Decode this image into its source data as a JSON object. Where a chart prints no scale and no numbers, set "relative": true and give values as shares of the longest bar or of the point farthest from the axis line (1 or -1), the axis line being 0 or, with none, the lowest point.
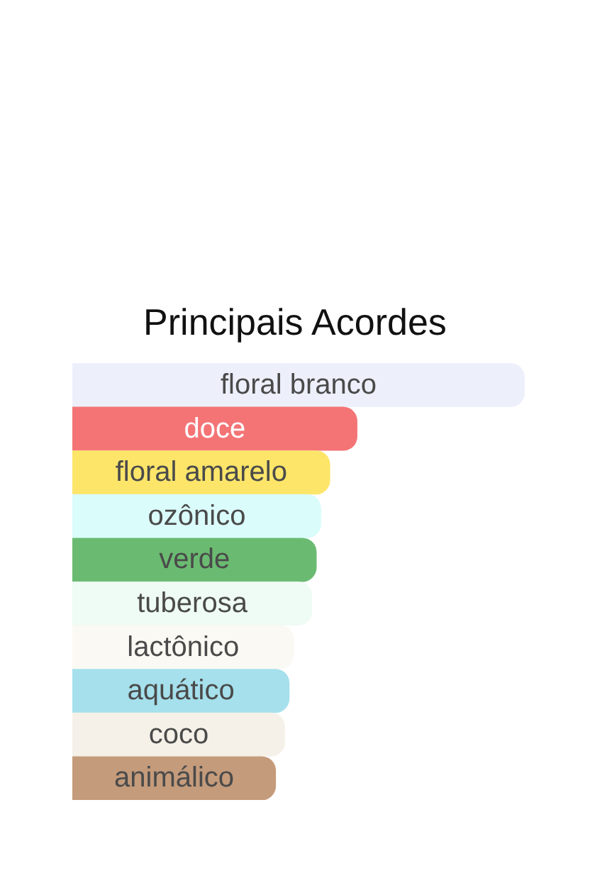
{
  "chart_data": {
    "type": "bar",
    "title": "Principais Acordes",
    "orientation": "horizontal",
    "relative": true,
    "categories": [
      "floral branco",
      "doce",
      "floral amarelo",
      "ozônico",
      "verde",
      "tuberosa",
      "lactônico",
      "aquático",
      "coco",
      "animálico"
    ],
    "values": [
      1,
      0.63,
      0.57,
      0.55,
      0.54,
      0.53,
      0.49,
      0.48,
      0.47,
      0.45
    ],
    "colors": [
      "#edf0fa",
      "#f47476",
      "#fde56a",
      "#dafcfb",
      "#6abb71",
      "#effbf5",
      "#fbf9f3",
      "#a5e0ec",
      "#f5f1e8",
      "#c49b7b"
    ]
  }
}
